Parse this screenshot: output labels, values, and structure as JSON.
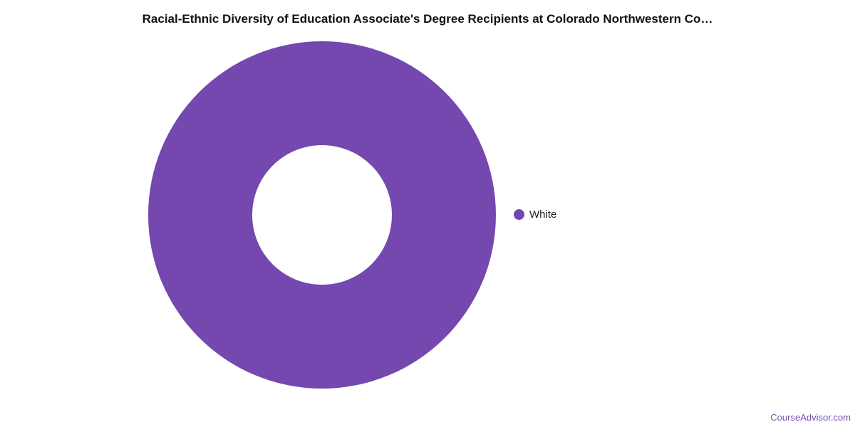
{
  "chart_data": {
    "type": "pie",
    "variant": "donut",
    "title": "Racial-Ethnic Diversity of Education Associate's Degree Recipients at Colorado Northwestern Co…",
    "slices": [
      {
        "label": "White",
        "value": 100,
        "color": "#7448ae"
      }
    ],
    "legend_position": "right"
  },
  "credit": "CourseAdvisor.com"
}
